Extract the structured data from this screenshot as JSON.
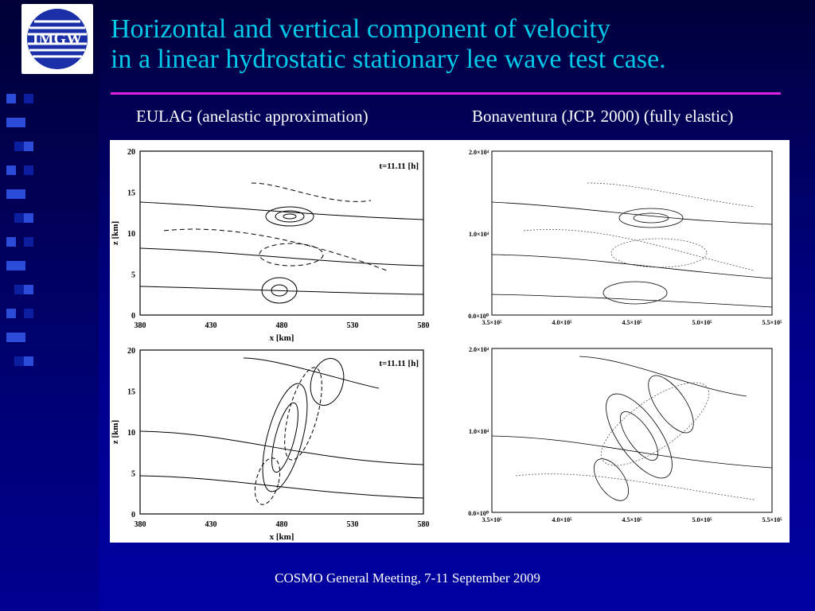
{
  "slide": {
    "title_line1": "Horizontal and vertical component of velocity",
    "title_line2": "in a linear hydrostatic stationary lee wave test case.",
    "left_caption": "EULAG (anelastic approximation)",
    "right_caption": "Bonaventura (JCP. 2000) (fully elastic)",
    "footer": "COSMO General Meeting, 7-11 September 2009"
  },
  "logo": {
    "text": "IMGW"
  },
  "left_plots": {
    "time_label": "t=11.11 [h]",
    "xlabel": "x [km]",
    "ylabel": "z [km]",
    "x_ticks": [
      "380",
      "430",
      "480",
      "530",
      "580"
    ],
    "y_ticks": [
      "0",
      "5",
      "10",
      "15",
      "20"
    ]
  },
  "right_plots": {
    "x_ticks": [
      "3.5×10⁵",
      "4.0×10⁵",
      "4.5×10⁵",
      "5.0×10⁵",
      "5.5×10⁵"
    ],
    "y_ticks": [
      "0.0×10⁰",
      "1.0×10⁴",
      "2.0×10⁴"
    ]
  }
}
